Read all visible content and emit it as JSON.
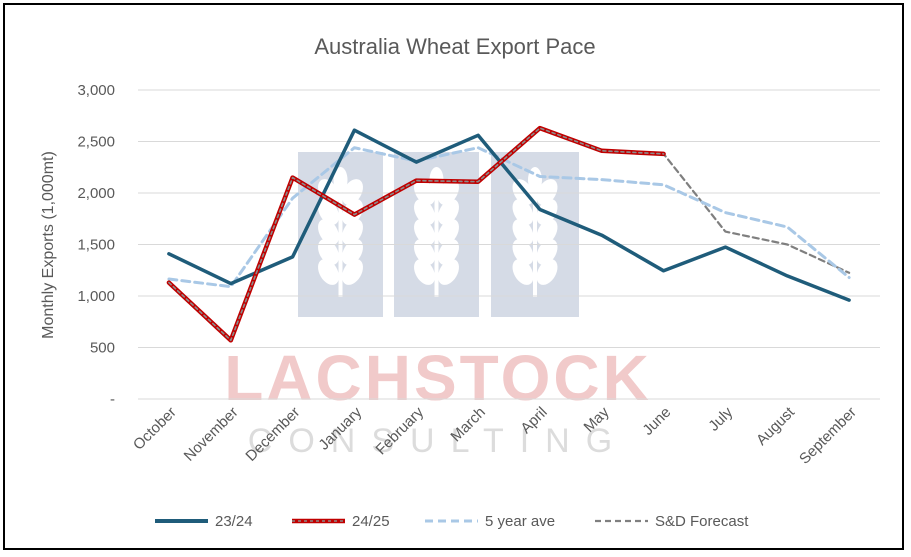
{
  "watermark": {
    "brand": "LACHSTOCK",
    "sub": "CONSULTING",
    "brand_color": "#e8a6a6",
    "sub_color": "#dcdcdc",
    "emblem_color": "#d5dbe6"
  },
  "chart_data": {
    "type": "line",
    "title": "Australia Wheat Export Pace",
    "xlabel": "",
    "ylabel": "Monthly Exports (1,000mt)",
    "categories": [
      "October",
      "November",
      "December",
      "January",
      "February",
      "March",
      "April",
      "May",
      "June",
      "July",
      "August",
      "September"
    ],
    "ylim": [
      0,
      3000
    ],
    "yticks": [
      0,
      500,
      1000,
      1500,
      2000,
      2500,
      3000
    ],
    "ytick_labels": [
      "-",
      "500",
      "1,000",
      "1,500",
      "2,000",
      "2,500",
      "3,000"
    ],
    "grid": true,
    "legend_position": "bottom",
    "series": [
      {
        "name": "23/24",
        "color": "#1f5c7a",
        "style": "solid",
        "values": [
          1410,
          1120,
          1380,
          2610,
          2300,
          2560,
          1840,
          1590,
          1245,
          1475,
          1195,
          960
        ]
      },
      {
        "name": "24/25",
        "color": "#c00000",
        "style": "solid-dashed-overlay",
        "values": [
          1130,
          570,
          2150,
          1790,
          2120,
          2110,
          2630,
          2410,
          2380,
          null,
          null,
          null
        ]
      },
      {
        "name": "5 year ave",
        "color": "#a9c8e6",
        "style": "dashed",
        "values": [
          1165,
          1090,
          1950,
          2440,
          2310,
          2440,
          2160,
          2130,
          2080,
          1810,
          1670,
          1180
        ]
      },
      {
        "name": "S&D Forecast",
        "color": "#7f7f7f",
        "style": "dashed",
        "values": [
          1130,
          570,
          2150,
          1790,
          2120,
          2110,
          2630,
          2410,
          2380,
          1625,
          1500,
          1225
        ]
      }
    ]
  }
}
